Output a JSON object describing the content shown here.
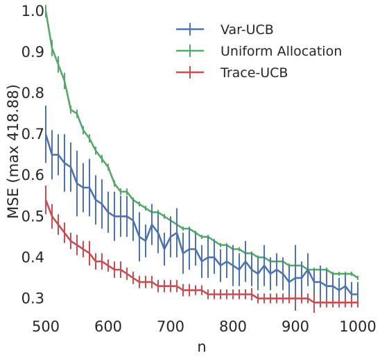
{
  "chart_data": {
    "type": "line",
    "title": "",
    "xlabel": "n",
    "ylabel": "MSE (max 418.88)",
    "xlim": [
      500,
      1000
    ],
    "ylim": [
      0.26,
      1.0
    ],
    "xticks": [
      500,
      600,
      700,
      800,
      900,
      1000
    ],
    "yticks": [
      0.3,
      0.4,
      0.5,
      0.6,
      0.7,
      0.8,
      0.9,
      1.0
    ],
    "xtick_labels": [
      "500",
      "600",
      "700",
      "800",
      "900",
      "1000"
    ],
    "ytick_labels": [
      "0.3",
      "0.4",
      "0.5",
      "0.6",
      "0.7",
      "0.8",
      "0.9",
      "1.0"
    ],
    "grid": false,
    "legend_position": "top-right",
    "x": [
      500,
      510,
      520,
      530,
      540,
      550,
      560,
      570,
      580,
      590,
      600,
      610,
      620,
      630,
      640,
      650,
      660,
      670,
      680,
      690,
      700,
      710,
      720,
      730,
      740,
      750,
      760,
      770,
      780,
      790,
      800,
      810,
      820,
      830,
      840,
      850,
      860,
      870,
      880,
      890,
      900,
      910,
      920,
      930,
      940,
      950,
      960,
      970,
      980,
      990,
      1000
    ],
    "series": [
      {
        "name": "Var-UCB",
        "color": "#4c72b0",
        "values": [
          0.7,
          0.65,
          0.65,
          0.63,
          0.62,
          0.58,
          0.57,
          0.57,
          0.54,
          0.53,
          0.51,
          0.5,
          0.5,
          0.5,
          0.49,
          0.45,
          0.44,
          0.48,
          0.46,
          0.42,
          0.45,
          0.46,
          0.41,
          0.42,
          0.42,
          0.39,
          0.4,
          0.4,
          0.38,
          0.39,
          0.38,
          0.37,
          0.39,
          0.37,
          0.36,
          0.38,
          0.36,
          0.37,
          0.36,
          0.34,
          0.35,
          0.35,
          0.37,
          0.34,
          0.34,
          0.33,
          0.33,
          0.32,
          0.33,
          0.31,
          0.31
        ],
        "errors": [
          0.07,
          0.06,
          0.05,
          0.07,
          0.06,
          0.08,
          0.06,
          0.07,
          0.06,
          0.06,
          0.05,
          0.06,
          0.05,
          0.05,
          0.05,
          0.06,
          0.04,
          0.05,
          0.05,
          0.04,
          0.05,
          0.06,
          0.05,
          0.05,
          0.04,
          0.04,
          0.05,
          0.04,
          0.04,
          0.04,
          0.05,
          0.04,
          0.05,
          0.04,
          0.04,
          0.05,
          0.04,
          0.04,
          0.04,
          0.04,
          0.08,
          0.04,
          0.04,
          0.03,
          0.04,
          0.04,
          0.03,
          0.03,
          0.03,
          0.03,
          0.03
        ]
      },
      {
        "name": "Uniform Allocation",
        "color": "#55a868",
        "values": [
          1.0,
          0.91,
          0.87,
          0.83,
          0.76,
          0.75,
          0.71,
          0.69,
          0.66,
          0.64,
          0.62,
          0.58,
          0.56,
          0.56,
          0.54,
          0.53,
          0.52,
          0.51,
          0.51,
          0.5,
          0.49,
          0.48,
          0.47,
          0.47,
          0.46,
          0.45,
          0.45,
          0.44,
          0.43,
          0.43,
          0.42,
          0.42,
          0.41,
          0.41,
          0.4,
          0.4,
          0.39,
          0.39,
          0.39,
          0.38,
          0.38,
          0.38,
          0.37,
          0.37,
          0.37,
          0.37,
          0.36,
          0.36,
          0.36,
          0.36,
          0.35
        ],
        "errors": [
          0.015,
          0.02,
          0.02,
          0.02,
          0.01,
          0.01,
          0.01,
          0.01,
          0.01,
          0.01,
          0.008,
          0.008,
          0.008,
          0.008,
          0.006,
          0.006,
          0.006,
          0.006,
          0.006,
          0.006,
          0.005,
          0.005,
          0.005,
          0.005,
          0.005,
          0.005,
          0.005,
          0.005,
          0.005,
          0.005,
          0.005,
          0.005,
          0.005,
          0.005,
          0.005,
          0.005,
          0.005,
          0.005,
          0.005,
          0.005,
          0.005,
          0.005,
          0.005,
          0.005,
          0.005,
          0.005,
          0.005,
          0.005,
          0.005,
          0.005,
          0.005
        ]
      },
      {
        "name": "Trace-UCB",
        "color": "#c44e52",
        "values": [
          0.54,
          0.5,
          0.48,
          0.46,
          0.44,
          0.43,
          0.42,
          0.41,
          0.39,
          0.39,
          0.38,
          0.37,
          0.37,
          0.36,
          0.35,
          0.34,
          0.34,
          0.34,
          0.33,
          0.33,
          0.33,
          0.33,
          0.32,
          0.32,
          0.32,
          0.32,
          0.31,
          0.31,
          0.31,
          0.31,
          0.31,
          0.31,
          0.31,
          0.31,
          0.3,
          0.3,
          0.3,
          0.3,
          0.3,
          0.3,
          0.3,
          0.3,
          0.3,
          0.29,
          0.29,
          0.29,
          0.29,
          0.29,
          0.29,
          0.29,
          0.29
        ],
        "errors": [
          0.035,
          0.03,
          0.025,
          0.025,
          0.02,
          0.025,
          0.02,
          0.03,
          0.02,
          0.02,
          0.015,
          0.02,
          0.02,
          0.015,
          0.015,
          0.015,
          0.015,
          0.015,
          0.015,
          0.015,
          0.015,
          0.015,
          0.015,
          0.015,
          0.012,
          0.012,
          0.012,
          0.012,
          0.012,
          0.012,
          0.012,
          0.012,
          0.012,
          0.015,
          0.012,
          0.012,
          0.012,
          0.012,
          0.012,
          0.012,
          0.012,
          0.012,
          0.012,
          0.025,
          0.012,
          0.012,
          0.012,
          0.012,
          0.012,
          0.012,
          0.012
        ]
      }
    ]
  }
}
